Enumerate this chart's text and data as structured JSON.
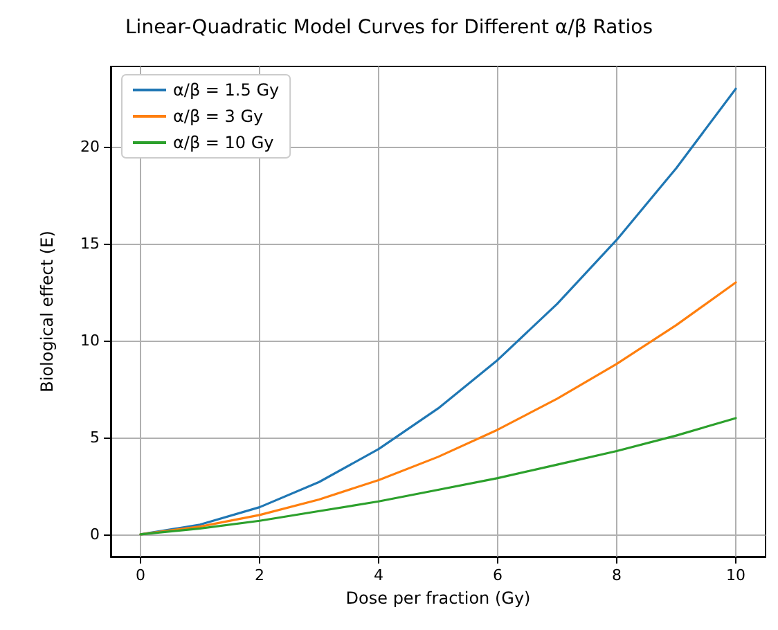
{
  "chart_data": {
    "type": "line",
    "title": "Linear-Quadratic Model Curves for Different α/β Ratios",
    "xlabel": "Dose per fraction (Gy)",
    "ylabel": "Biological effect (E)",
    "x": [
      0,
      1,
      2,
      3,
      4,
      5,
      6,
      7,
      8,
      9,
      10
    ],
    "series": [
      {
        "name": "α/β = 1.5 Gy",
        "color": "#1f77b4",
        "values": [
          0,
          0.5,
          1.4,
          2.7,
          4.4,
          6.5,
          9.0,
          11.9,
          15.2,
          18.9,
          23
        ]
      },
      {
        "name": "α/β = 3 Gy",
        "color": "#ff7f0e",
        "values": [
          0,
          0.4,
          1.0,
          1.8,
          2.8,
          4.0,
          5.4,
          7.0,
          8.8,
          10.8,
          13
        ]
      },
      {
        "name": "α/β = 10 Gy",
        "color": "#2ca02c",
        "values": [
          0,
          0.3,
          0.7,
          1.2,
          1.7,
          2.3,
          2.9,
          3.6,
          4.3,
          5.1,
          6
        ]
      }
    ],
    "xlim": [
      -0.5,
      10.5
    ],
    "xticks": [
      0,
      2,
      4,
      6,
      8,
      10
    ],
    "ylim": [
      -1.15,
      24.15
    ],
    "yticks": [
      0,
      5,
      10,
      15,
      20
    ],
    "grid": true,
    "legend": "top left",
    "marker": "none",
    "line_style": "solid"
  }
}
